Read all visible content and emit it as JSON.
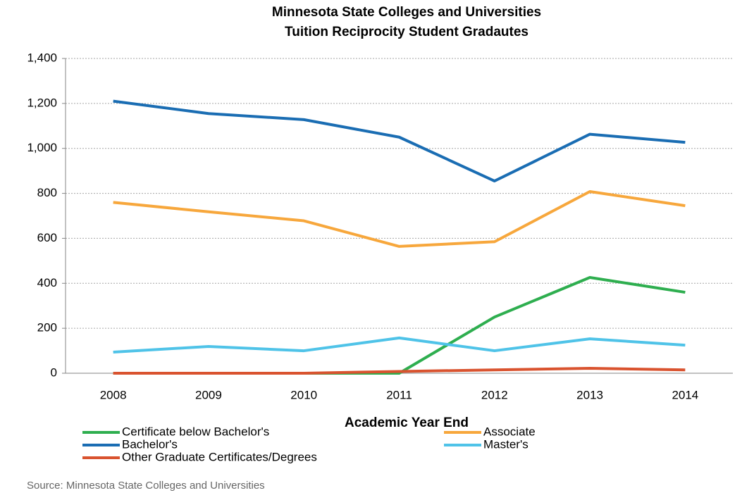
{
  "chart_data": {
    "type": "line",
    "title": [
      "Minnesota State Colleges and Universities",
      "Tuition Reciprocity Student Gradautes"
    ],
    "x_label": "Academic Year End",
    "source": "Source: Minnesota State Colleges and Universities",
    "categories": [
      "2008",
      "2009",
      "2010",
      "2011",
      "2012",
      "2013",
      "2014"
    ],
    "series": [
      {
        "name": "Certificate below Bachelor's",
        "color": "#2eae4f",
        "values": [
          0,
          0,
          0,
          0,
          250,
          426,
          360
        ]
      },
      {
        "name": "Associate",
        "color": "#f7a73c",
        "values": [
          760,
          718,
          678,
          564,
          585,
          808,
          745
        ]
      },
      {
        "name": "Bachelor's",
        "color": "#1a6db3",
        "values": [
          1210,
          1155,
          1128,
          1050,
          855,
          1063,
          1027
        ]
      },
      {
        "name": "Master's",
        "color": "#4fc3e8",
        "values": [
          94,
          119,
          100,
          157,
          100,
          153,
          125
        ]
      },
      {
        "name": "Other Graduate Certificates/Degrees",
        "color": "#d9532f",
        "values": [
          0,
          0,
          0,
          8,
          15,
          22,
          15
        ]
      }
    ],
    "ylim": [
      0,
      1400
    ],
    "yticks": [
      0,
      200,
      400,
      600,
      800,
      {
        "value": 1000,
        "label": "1,000"
      },
      {
        "value": 1200,
        "label": "1,200"
      },
      {
        "value": 1400,
        "label": "1,400"
      }
    ],
    "grid": true
  }
}
